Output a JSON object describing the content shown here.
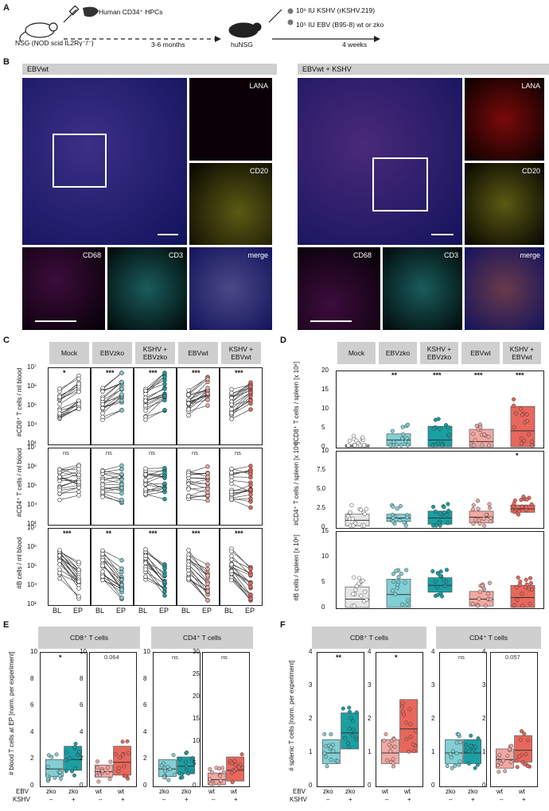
{
  "panel_labels": {
    "a": "A",
    "b": "B",
    "c": "C",
    "d": "D",
    "e": "E",
    "f": "F"
  },
  "schematic": {
    "mouse_label": "NSG (NOD scid IL2Rγ⁻/⁻)",
    "hpc_label": "Human CD34⁺ HPCs",
    "time1": "3-6 months",
    "humouse_label": "huNSG",
    "kshv_dose": "10⁶ IU KSHV (rKSHV.219)",
    "ebv_dose": "10⁵ IU EBV (B95-8) wt or zko",
    "time2": "4 weeks"
  },
  "micrographs": {
    "left_title": "EBVwt",
    "right_title": "EBVwt + KSHV",
    "inset_lana": "LANA",
    "inset_cd20": "CD20",
    "inset_cd68": "CD68",
    "inset_cd3": "CD3",
    "inset_merge": "merge"
  },
  "groups": [
    "Mock",
    "EBVzko",
    "KSHV + EBVzko",
    "EBVwt",
    "KSHV + EBVwt"
  ],
  "panel_c": {
    "rows": [
      {
        "ylabel": "#CD8⁺ T cells / ml blood",
        "sig": [
          "*",
          "***",
          "***",
          "***",
          "***"
        ]
      },
      {
        "ylabel": "#CD4⁺ T cells / ml blood",
        "sig": [
          "ns",
          "ns",
          "ns",
          "ns",
          "ns"
        ]
      },
      {
        "ylabel": "#B cells / ml blood",
        "sig": [
          "***",
          "**",
          "***",
          "***",
          "***"
        ]
      }
    ],
    "yticks": [
      "10⁷",
      "10⁶",
      "10⁵",
      "10⁴",
      "10³"
    ],
    "xticks": [
      "BL",
      "EP"
    ]
  },
  "panel_d": {
    "rows": [
      {
        "ylabel": "#CD8⁺ T cells / spleen [x 10⁶]",
        "yticks": [
          "20",
          "15",
          "10",
          "5",
          "0"
        ],
        "sig": [
          "",
          "**",
          "***",
          "***",
          "***"
        ]
      },
      {
        "ylabel": "#CD4⁺ T cells / spleen [x 10⁶]",
        "yticks": [
          "10",
          "7.5",
          "5.0",
          "2.5",
          "0"
        ],
        "sig": [
          "",
          "",
          "",
          "",
          "*"
        ]
      },
      {
        "ylabel": "#B cells / spleen [x 10⁶]",
        "yticks": [
          "15",
          "10",
          "5",
          "0"
        ],
        "sig": [
          "",
          "",
          "",
          "",
          ""
        ]
      }
    ]
  },
  "panel_e": {
    "cd8_title": "CD8⁺ T cells",
    "cd4_title": "CD4⁺ T cells",
    "ylabel": "# blood T cells at EP [norm. per experiment]",
    "yticks_small": [
      "10",
      "8",
      "6",
      "4",
      "2",
      "0"
    ],
    "yticks_big": [
      "30",
      "25",
      "20",
      "15",
      "10",
      "5",
      "0"
    ],
    "sig": [
      "*",
      "0.064",
      "ns",
      "ns"
    ],
    "ebv_row": "EBV",
    "kshv_row": "KSHV",
    "ebv_vals": [
      "zko",
      "zko",
      "wt",
      "wt",
      "zko",
      "zko",
      "wt",
      "wt"
    ],
    "kshv_vals": [
      "–",
      "+",
      "–",
      "+",
      "–",
      "+",
      "–",
      "+"
    ]
  },
  "panel_f": {
    "cd8_title": "CD8⁺ T cells",
    "cd4_title": "CD4⁺ T cells",
    "ylabel": "# splenic T cells [norm. per experiment]",
    "yticks": [
      "4",
      "3",
      "2",
      "1",
      "0"
    ],
    "sig": [
      "**",
      "*",
      "ns",
      "0.057"
    ],
    "ebv_row": "EBV",
    "kshv_row": "KSHV",
    "ebv_vals": [
      "zko",
      "zko",
      "wt",
      "wt",
      "zko",
      "zko",
      "wt",
      "wt"
    ],
    "kshv_vals": [
      "–",
      "+",
      "–",
      "+",
      "–",
      "+",
      "–",
      "+"
    ]
  },
  "colors": {
    "mock": "#ffffff",
    "zko": "#7fcfd4",
    "kshv_zko": "#1a9fa3",
    "wt": "#f2a9a3",
    "kshv_wt": "#e8675c"
  }
}
